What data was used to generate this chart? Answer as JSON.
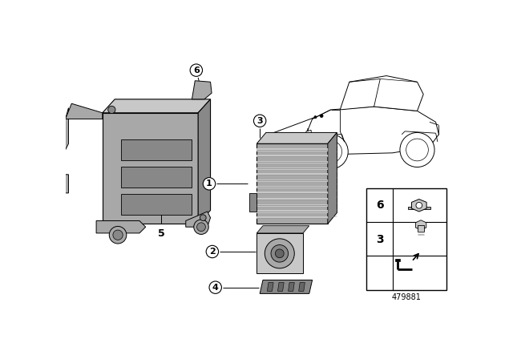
{
  "bg_color": "#ffffff",
  "part_number": "479881",
  "gray_light": "#c8c8c8",
  "gray_mid": "#a8a8a8",
  "gray_dark": "#888888",
  "gray_darker": "#666666",
  "line_color": "#000000"
}
